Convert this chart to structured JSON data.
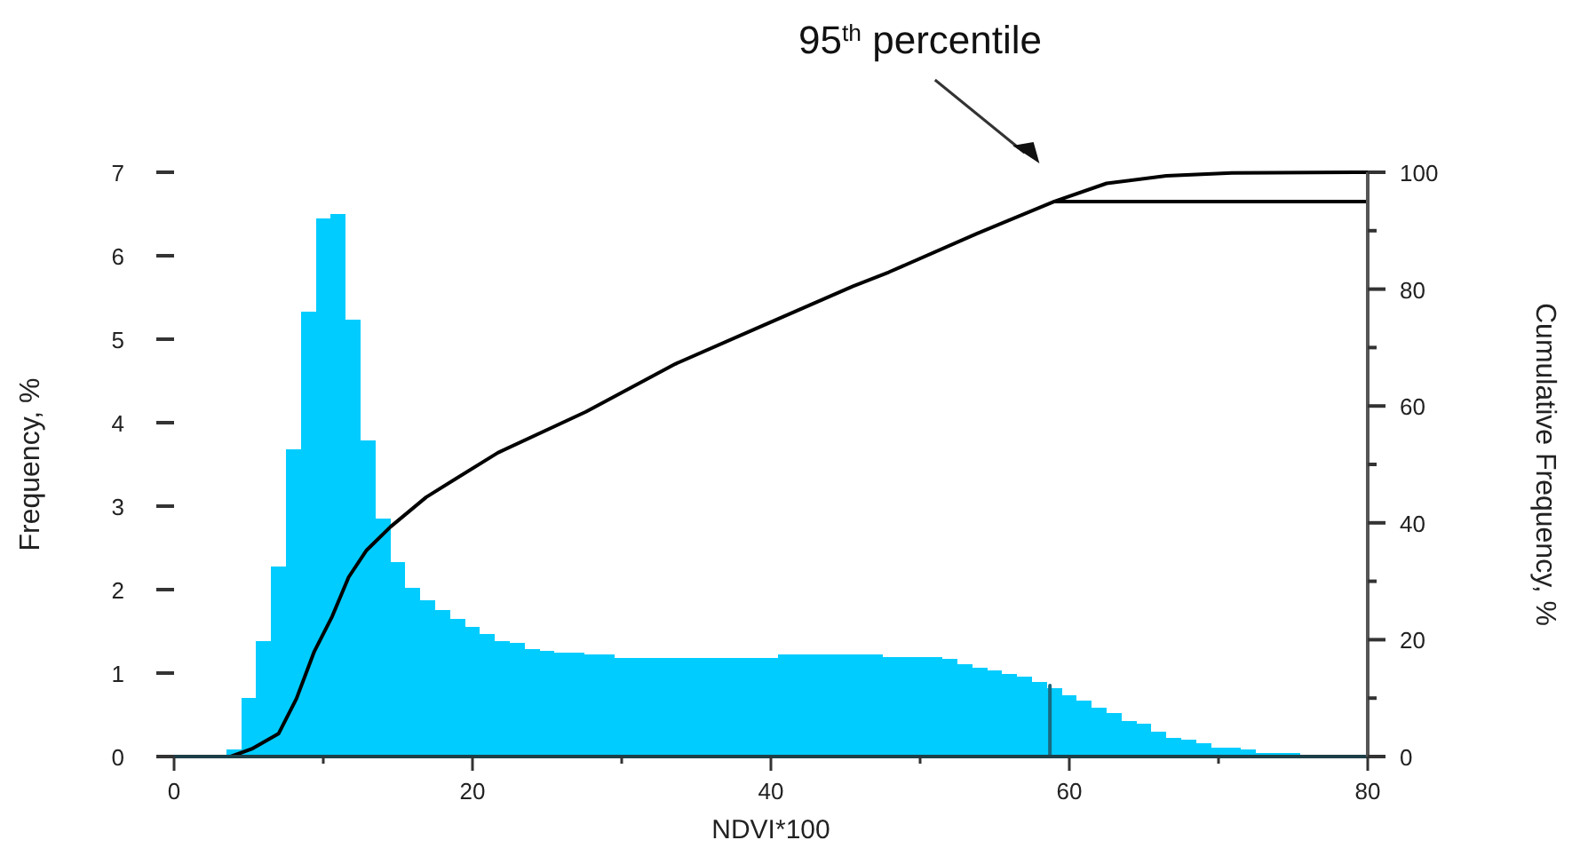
{
  "chart_data": {
    "type": "histogram",
    "xlabel": "NDVI*100",
    "ylabel": "Frequency, %",
    "y2label": "Cumulative Frequency, %",
    "annotations": [
      "95$^{th}$ percentile"
    ],
    "xlim": [
      0,
      80
    ],
    "xticks": [
      0,
      {
        "value": 10,
        "label": null
      },
      20,
      {
        "value": 30,
        "label": null
      },
      40,
      {
        "value": 50,
        "label": null
      },
      60,
      {
        "value": 70,
        "label": null
      },
      80
    ],
    "ylim": [
      0,
      7
    ],
    "yticks": [
      0,
      1,
      2,
      3,
      4,
      5,
      6,
      7
    ],
    "y2lim": [
      0,
      100
    ],
    "y2ticks": [
      0,
      {
        "value": 10,
        "label": null
      },
      20,
      {
        "value": 30,
        "label": null
      },
      40,
      {
        "value": 50,
        "label": null
      },
      60,
      {
        "value": 70,
        "label": null
      },
      80,
      {
        "value": 90,
        "label": null
      },
      100
    ],
    "grid": false,
    "series": [
      {
        "color": "#00ccff",
        "bins": [
          3.5,
          4.5,
          5.5,
          6.5,
          7.5,
          8.5,
          9.5,
          10.5,
          11.5,
          12.5,
          13.5,
          14.5,
          15.5,
          16.5,
          17.5,
          18.5,
          19.5,
          20.5,
          21.5,
          22.5,
          23.5,
          24.5,
          25.5,
          26.5,
          27.5,
          28.5,
          29.5,
          30.5,
          31.5,
          32.5,
          33.5,
          34.5,
          35.5,
          36.5,
          37.5,
          38.5,
          39.5,
          40.5,
          41.5,
          42.5,
          43.5,
          44.5,
          45.5,
          46.5,
          47.5,
          48.5,
          49.5,
          50.5,
          51.5,
          52.5,
          53.5,
          54.5,
          55.5,
          56.5,
          57.5,
          58.5,
          59.5,
          60.5,
          61.5,
          62.5,
          63.5,
          64.5,
          65.5,
          66.5,
          67.5,
          68.5,
          69.5,
          70.5,
          71.5,
          72.5,
          73.5,
          74.5,
          75.5
        ],
        "values": [
          0.08,
          0.7,
          1.38,
          2.28,
          3.68,
          5.33,
          6.45,
          6.5,
          5.23,
          3.79,
          2.85,
          2.33,
          2.02,
          1.87,
          1.76,
          1.65,
          1.55,
          1.47,
          1.38,
          1.36,
          1.29,
          1.27,
          1.25,
          1.25,
          1.22,
          1.22,
          1.18,
          1.18,
          1.18,
          1.18,
          1.18,
          1.18,
          1.18,
          1.18,
          1.18,
          1.18,
          1.18,
          1.22,
          1.22,
          1.22,
          1.22,
          1.22,
          1.22,
          1.22,
          1.19,
          1.19,
          1.19,
          1.19,
          1.17,
          1.11,
          1.06,
          1.03,
          0.99,
          0.96,
          0.89,
          0.82,
          0.73,
          0.67,
          0.59,
          0.52,
          0.43,
          0.39,
          0.3,
          0.22,
          0.2,
          0.16,
          0.11,
          0.11,
          0.08,
          0.04,
          0.04,
          0.04
        ]
      },
      {
        "type": "line",
        "axis": "y2",
        "color": "#000000",
        "x": [
          3.8,
          5.2,
          7.0,
          8.2,
          9.4,
          10.6,
          11.7,
          12.9,
          14.5,
          16.9,
          21.7,
          27.6,
          33.6,
          39.5,
          45.5,
          47.9,
          53.8,
          59.0,
          62.5,
          66.5,
          70.9,
          80
        ],
        "values": [
          0,
          1.3,
          3.9,
          9.9,
          18,
          24,
          30.7,
          35.3,
          39.3,
          44.4,
          52,
          59,
          67.2,
          73.8,
          80.5,
          82.9,
          89.5,
          95,
          98.1,
          99.4,
          99.9,
          100
        ]
      },
      {
        "type": "line",
        "axis": "y2",
        "color": "#000000",
        "x": [
          59,
          80
        ],
        "values": [
          95,
          95
        ]
      },
      {
        "type": "line",
        "color": "#1a6a80",
        "x": [
          58.7,
          58.7
        ],
        "values": [
          0,
          0.85
        ]
      }
    ]
  }
}
